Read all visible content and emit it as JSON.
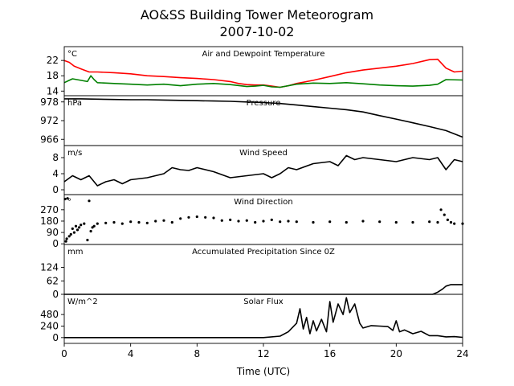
{
  "chart_data": {
    "title": "AO&SS Building Tower Meteorogram",
    "subtitle": "2007-10-02",
    "xlabel": "Time (UTC)",
    "x_ticks": [
      0,
      4,
      8,
      12,
      16,
      20,
      24
    ],
    "xlim": [
      0,
      24
    ],
    "panels": [
      {
        "id": "temperature",
        "type": "line",
        "title": "Air and Dewpoint Temperature",
        "unit": "°C",
        "ylim": [
          12.8,
          25.6
        ],
        "y_ticks": [
          14,
          18,
          22
        ],
        "series": [
          {
            "color": "#ff0000",
            "x": [
              0,
              0.3,
              0.6,
              1.0,
              1.5,
              2.0,
              3.0,
              4.0,
              5.0,
              6.0,
              7.0,
              8.0,
              9.0,
              10.0,
              10.5,
              11.0,
              11.5,
              12.0,
              12.5,
              13.0,
              13.5,
              14.0,
              15.0,
              16.0,
              17.0,
              18.0,
              19.0,
              20.0,
              21.0,
              22.0,
              22.5,
              23.0,
              23.5,
              24.0
            ],
            "values": [
              22.0,
              21.5,
              20.5,
              19.8,
              19.0,
              19.0,
              18.8,
              18.5,
              18.0,
              17.8,
              17.5,
              17.3,
              17.0,
              16.5,
              16.0,
              15.7,
              15.6,
              15.6,
              15.3,
              15.0,
              15.4,
              16.0,
              16.8,
              17.8,
              18.8,
              19.5,
              20.0,
              20.5,
              21.2,
              22.2,
              22.3,
              20.0,
              19.0,
              19.2
            ]
          },
          {
            "color": "#008000",
            "x": [
              0,
              0.3,
              0.5,
              1.0,
              1.4,
              1.6,
              1.8,
              2.0,
              3.0,
              4.0,
              5.0,
              6.0,
              7.0,
              8.0,
              9.0,
              10.0,
              11.0,
              11.5,
              12.0,
              12.5,
              13.0,
              14.0,
              15.0,
              16.0,
              17.0,
              18.0,
              19.0,
              20.0,
              21.0,
              22.0,
              22.5,
              23.0,
              24.0
            ],
            "values": [
              16.2,
              16.8,
              17.2,
              16.8,
              16.5,
              18.0,
              17.0,
              16.2,
              16.0,
              15.8,
              15.6,
              15.8,
              15.4,
              15.8,
              16.0,
              15.7,
              15.2,
              15.3,
              15.5,
              15.1,
              15.0,
              15.8,
              16.1,
              16.0,
              16.2,
              15.9,
              15.6,
              15.4,
              15.3,
              15.5,
              15.8,
              17.0,
              16.9
            ]
          }
        ]
      },
      {
        "id": "pressure",
        "type": "line",
        "title": "Pressure",
        "unit": "hPa",
        "ylim": [
          964,
          980
        ],
        "y_ticks": [
          966,
          972,
          978
        ],
        "series": [
          {
            "color": "#000000",
            "x": [
              0,
              1,
              2,
              3,
              4,
              5,
              6,
              7,
              8,
              9,
              10,
              11,
              12,
              13,
              14,
              15,
              16,
              17,
              18,
              19,
              20,
              21,
              22,
              23,
              24
            ],
            "values": [
              979.0,
              979.0,
              978.9,
              978.8,
              978.7,
              978.7,
              978.6,
              978.5,
              978.4,
              978.3,
              978.2,
              978.0,
              977.8,
              977.5,
              977.0,
              976.5,
              976.0,
              975.5,
              974.8,
              973.6,
              972.5,
              971.3,
              970.1,
              968.8,
              966.7
            ]
          }
        ]
      },
      {
        "id": "wind_speed",
        "type": "line",
        "title": "Wind Speed",
        "unit": "m/s",
        "ylim": [
          -1.2,
          11
        ],
        "y_ticks": [
          0,
          4,
          8
        ],
        "series": [
          {
            "color": "#000000",
            "x": [
              0,
              0.5,
              1.0,
              1.5,
              2.0,
              2.5,
              3.0,
              3.5,
              4.0,
              5.0,
              6.0,
              6.5,
              7.0,
              7.5,
              8.0,
              9.0,
              10.0,
              11.0,
              12.0,
              12.5,
              13.0,
              13.5,
              14.0,
              15.0,
              16.0,
              16.5,
              17.0,
              17.5,
              18.0,
              19.0,
              20.0,
              21.0,
              22.0,
              22.5,
              23.0,
              23.5,
              24.0
            ],
            "values": [
              2.0,
              3.5,
              2.5,
              3.5,
              1.0,
              2.0,
              2.5,
              1.5,
              2.5,
              3.0,
              4.0,
              5.5,
              5.0,
              4.8,
              5.5,
              4.5,
              3.0,
              3.5,
              4.0,
              3.0,
              4.0,
              5.5,
              5.0,
              6.5,
              7.0,
              6.0,
              8.5,
              7.5,
              8.0,
              7.5,
              7.0,
              8.0,
              7.5,
              8.0,
              5.0,
              7.5,
              7.0
            ]
          }
        ]
      },
      {
        "id": "wind_direction",
        "type": "scatter",
        "title": "Wind Direction",
        "unit": "°",
        "ylim": [
          -5,
          390
        ],
        "y_ticks": [
          0,
          90,
          180,
          270
        ],
        "series": [
          {
            "color": "#000000",
            "x": [
              0.05,
              0.1,
              0.15,
              0.2,
              0.3,
              0.4,
              0.5,
              0.6,
              0.7,
              0.8,
              0.9,
              1.0,
              1.2,
              1.4,
              1.5,
              1.6,
              1.7,
              1.8,
              2.0,
              2.5,
              3.0,
              3.5,
              4.0,
              4.5,
              5.0,
              5.5,
              6.0,
              6.5,
              7.0,
              7.5,
              8.0,
              8.5,
              9.0,
              9.5,
              10.0,
              10.5,
              11.0,
              11.5,
              12.0,
              12.5,
              13.0,
              13.5,
              14.0,
              15.0,
              16.0,
              17.0,
              18.0,
              19.0,
              20.0,
              21.0,
              22.0,
              22.5,
              22.7,
              22.9,
              23.1,
              23.3,
              23.5,
              24.0
            ],
            "values": [
              355,
              20,
              40,
              360,
              60,
              75,
              120,
              90,
              140,
              110,
              130,
              150,
              160,
              30,
              340,
              100,
              130,
              140,
              160,
              165,
              170,
              160,
              175,
              170,
              165,
              180,
              185,
              170,
              200,
              210,
              215,
              210,
              205,
              185,
              190,
              180,
              185,
              170,
              180,
              190,
              175,
              180,
              175,
              170,
              175,
              170,
              180,
              175,
              170,
              170,
              175,
              170,
              270,
              230,
              190,
              170,
              160,
              160
            ]
          }
        ]
      },
      {
        "id": "precip",
        "type": "line",
        "title": "Accumulated Precipitation Since 0Z",
        "unit": "mm",
        "ylim": [
          0,
          230
        ],
        "y_ticks": [
          0,
          62,
          124
        ],
        "series": [
          {
            "color": "#000000",
            "x": [
              0,
              22.2,
              22.5,
              22.8,
              23.0,
              23.3,
              24.0
            ],
            "values": [
              0,
              0,
              10,
              25,
              38,
              45,
              45
            ]
          }
        ]
      },
      {
        "id": "solar",
        "type": "line",
        "title": "Solar Flux",
        "unit": "W/m^2",
        "ylim": [
          -120,
          900
        ],
        "y_ticks": [
          0,
          240,
          480
        ],
        "series": [
          {
            "color": "#000000",
            "x": [
              0,
              12.0,
              13.0,
              13.5,
              14.0,
              14.2,
              14.4,
              14.6,
              14.8,
              15.0,
              15.2,
              15.5,
              15.8,
              16.0,
              16.2,
              16.5,
              16.8,
              17.0,
              17.2,
              17.5,
              17.8,
              18.0,
              18.5,
              19.0,
              19.5,
              19.8,
              20.0,
              20.2,
              20.5,
              21.0,
              21.5,
              22.0,
              22.5,
              23.0,
              23.5,
              24.0
            ],
            "values": [
              0,
              0,
              30,
              120,
              300,
              600,
              180,
              420,
              80,
              350,
              140,
              380,
              120,
              750,
              320,
              700,
              480,
              830,
              520,
              700,
              300,
              200,
              250,
              240,
              230,
              150,
              350,
              120,
              160,
              80,
              130,
              40,
              40,
              15,
              20,
              5
            ]
          }
        ]
      }
    ]
  }
}
